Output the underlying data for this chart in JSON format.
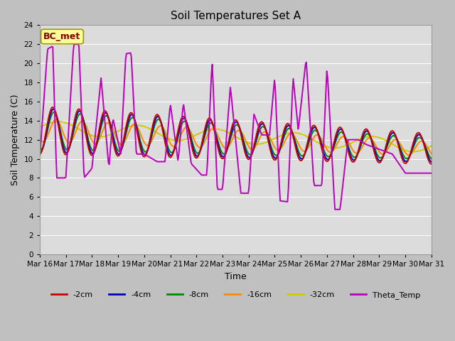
{
  "title": "Soil Temperatures Set A",
  "xlabel": "Time",
  "ylabel": "Soil Temperature (C)",
  "annotation": "BC_met",
  "ylim": [
    0,
    24
  ],
  "yticks": [
    0,
    2,
    4,
    6,
    8,
    10,
    12,
    14,
    16,
    18,
    20,
    22,
    24
  ],
  "x_labels": [
    "Mar 16",
    "Mar 17",
    "Mar 18",
    "Mar 19",
    "Mar 20",
    "Mar 21",
    "Mar 22",
    "Mar 23",
    "Mar 24",
    "Mar 25",
    "Mar 26",
    "Mar 27",
    "Mar 28",
    "Mar 29",
    "Mar 30",
    "Mar 31"
  ],
  "series_colors": {
    "-2cm": "#cc0000",
    "-4cm": "#0000bb",
    "-8cm": "#008800",
    "-16cm": "#ff8800",
    "-32cm": "#cccc00",
    "Theta_Temp": "#bb00bb"
  },
  "series_lw": {
    "-2cm": 1.4,
    "-4cm": 1.4,
    "-8cm": 1.4,
    "-16cm": 1.4,
    "-32cm": 1.4,
    "Theta_Temp": 1.4
  },
  "fig_bg": "#c0c0c0",
  "ax_bg": "#dcdcdc",
  "grid_color": "#ffffff",
  "n_points": 480
}
